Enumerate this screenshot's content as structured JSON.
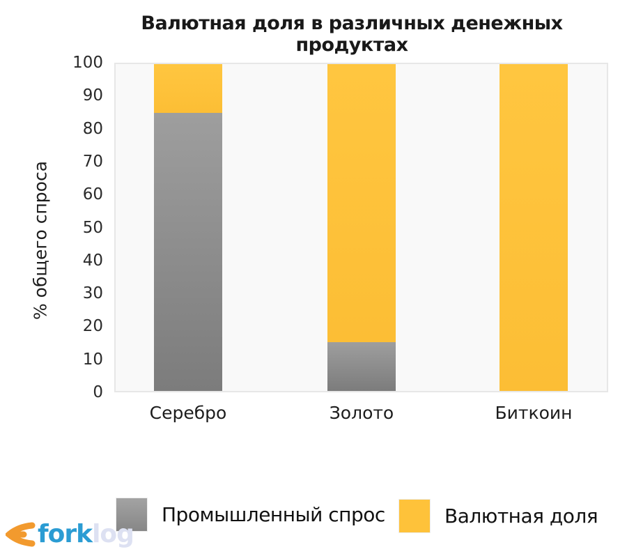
{
  "title": "Валютная доля в различных денежных продуктах",
  "chart_data": {
    "type": "bar",
    "stacked": true,
    "title": "Валютная доля в различных денежных продуктах",
    "xlabel": "",
    "ylabel": "% общего спроса",
    "ylim": [
      0,
      100
    ],
    "ytick_step": 10,
    "grid": false,
    "legend_position": "bottom",
    "plot_background": "#f9f9f9",
    "categories": [
      "Серебро",
      "Золото",
      "Биткоин"
    ],
    "series": [
      {
        "name": "Промышленный спрос",
        "color": "#8e8e8e",
        "values": [
          85,
          15,
          0
        ]
      },
      {
        "name": "Валютная доля",
        "color": "#FEC23A",
        "values": [
          15,
          85,
          100
        ]
      }
    ]
  },
  "legend": {
    "industrial_label": "Промышленный спрос",
    "currency_label": "Валютная доля"
  },
  "logo": {
    "fork": "fork",
    "log": "log",
    "orange": "#F29A2E",
    "blue": "#2B9CD3",
    "pale": "#DDE1F2"
  },
  "colors": {
    "industrial_gray": "#8e8e8e",
    "currency_yellow": "#FEC23A",
    "plot_border": "#e7e7e7",
    "text": "#1c1c1c"
  }
}
